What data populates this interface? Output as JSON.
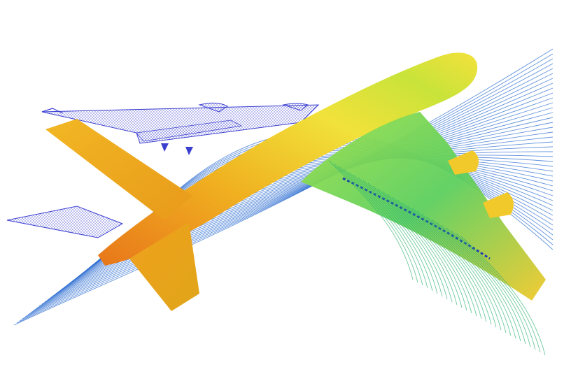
{
  "image": {
    "subject": "cfd-airflow-visualization",
    "colors": {
      "background": "#ffffff",
      "streamline_blue": "#2f6fd1",
      "streamline_green": "#2fb36f",
      "mesh_blue": "#3b3fd0",
      "surface_yellow": "#f2e33c",
      "surface_orange": "#f0a21c",
      "surface_red_orange": "#e8761a",
      "surface_green": "#7fd34a"
    }
  }
}
